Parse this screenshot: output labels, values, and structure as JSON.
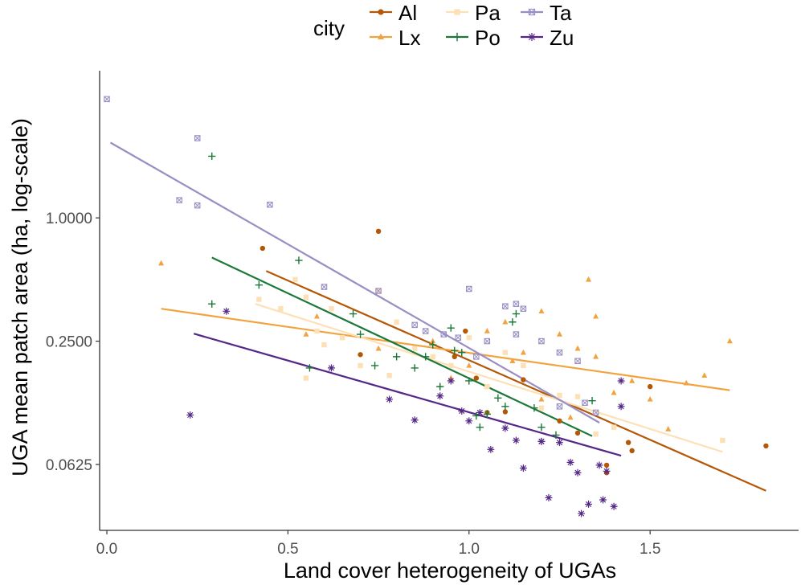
{
  "chart_data": {
    "type": "scatter",
    "xlabel": "Land cover heterogeneity of UGAs",
    "ylabel": "UGA mean patch area (ha, log-scale)",
    "x_ticks": [
      "0.0",
      "0.5",
      "1.0",
      "1.5"
    ],
    "x_tick_values": [
      0,
      0.5,
      1.0,
      1.5
    ],
    "y_ticks": [
      "1.0000",
      "0.2500",
      "0.0625"
    ],
    "y_tick_values": [
      1.0,
      0.25,
      0.0625
    ],
    "xlim": [
      -0.02,
      1.91
    ],
    "ylim": [
      0.0298,
      5.23
    ],
    "y_scale": "log",
    "grid": false,
    "legend": {
      "title": "city",
      "position": "top",
      "entries": [
        {
          "key": "Al",
          "label": "Al",
          "color": "#b35806",
          "shape": "circle"
        },
        {
          "key": "Lx",
          "label": "Lx",
          "color": "#f1a340",
          "shape": "triangle"
        },
        {
          "key": "Pa",
          "label": "Pa",
          "color": "#fee0b6",
          "shape": "square"
        },
        {
          "key": "Po",
          "label": "Po",
          "color": "#1b7837",
          "shape": "plus"
        },
        {
          "key": "Ta",
          "label": "Ta",
          "color": "#998ec3",
          "shape": "boxed-x"
        },
        {
          "key": "Zu",
          "label": "Zu",
          "color": "#542788",
          "shape": "asterisk"
        }
      ]
    },
    "series": [
      {
        "name": "Al",
        "color": "#b35806",
        "shape": "circle",
        "line": [
          [
            0.44,
            0.55
          ],
          [
            1.82,
            0.0465
          ]
        ],
        "x": [
          0.75,
          0.43,
          0.7,
          0.96,
          0.99,
          1.02,
          1.05,
          1.1,
          1.15,
          1.25,
          1.3,
          1.38,
          1.45,
          1.5,
          1.82,
          1.38,
          1.44
        ],
        "y": [
          0.86,
          0.71,
          0.215,
          0.21,
          0.28,
          0.165,
          0.112,
          0.113,
          0.162,
          0.102,
          0.089,
          0.057,
          0.073,
          0.15,
          0.077,
          0.062,
          0.08
        ]
      },
      {
        "name": "Lx",
        "color": "#f1a340",
        "shape": "triangle",
        "line": [
          [
            0.15,
            0.36
          ],
          [
            1.72,
            0.144
          ]
        ],
        "x": [
          0.15,
          0.55,
          0.58,
          0.75,
          0.9,
          1.0,
          1.05,
          1.1,
          1.15,
          1.2,
          1.25,
          1.3,
          1.33,
          1.35,
          1.4,
          1.45,
          1.5,
          1.55,
          1.6,
          1.65,
          1.72,
          1.28,
          1.35,
          0.95,
          1.12,
          1.2
        ],
        "y": [
          0.6,
          0.27,
          0.33,
          0.23,
          0.25,
          0.19,
          0.28,
          0.31,
          0.22,
          0.13,
          0.27,
          0.23,
          0.5,
          0.33,
          0.14,
          0.16,
          0.13,
          0.093,
          0.156,
          0.17,
          0.25,
          0.106,
          0.21,
          0.165,
          0.2,
          0.35
        ]
      },
      {
        "name": "Pa",
        "color": "#fee0b6",
        "shape": "square",
        "line": [
          [
            0.41,
            0.38
          ],
          [
            1.7,
            0.072
          ]
        ],
        "x": [
          0.42,
          0.48,
          0.52,
          0.55,
          0.58,
          0.6,
          0.65,
          0.7,
          0.75,
          0.8,
          0.85,
          0.9,
          0.95,
          1.0,
          1.05,
          1.1,
          1.15,
          1.2,
          1.25,
          1.3,
          1.35,
          1.4,
          1.7,
          0.55,
          0.78,
          0.62
        ],
        "y": [
          0.4,
          0.36,
          0.5,
          0.41,
          0.28,
          0.24,
          0.26,
          0.19,
          0.44,
          0.31,
          0.23,
          0.21,
          0.19,
          0.26,
          0.15,
          0.22,
          0.19,
          0.118,
          0.136,
          0.134,
          0.088,
          0.095,
          0.082,
          0.165,
          0.17,
          0.36
        ]
      },
      {
        "name": "Po",
        "color": "#1b7837",
        "shape": "plus",
        "line": [
          [
            0.29,
            0.64
          ],
          [
            1.34,
            0.086
          ]
        ],
        "x": [
          0.29,
          0.29,
          0.42,
          0.53,
          0.56,
          0.68,
          0.7,
          0.74,
          0.8,
          0.85,
          0.88,
          0.9,
          0.92,
          0.95,
          0.98,
          1.0,
          1.03,
          1.05,
          1.08,
          1.1,
          1.12,
          1.13,
          1.18,
          1.2,
          1.24,
          1.34,
          0.96,
          1.02
        ],
        "y": [
          2.0,
          0.38,
          0.47,
          0.62,
          0.185,
          0.34,
          0.27,
          0.19,
          0.21,
          0.185,
          0.21,
          0.24,
          0.15,
          0.29,
          0.22,
          0.16,
          0.095,
          0.11,
          0.132,
          0.12,
          0.31,
          0.34,
          0.118,
          0.095,
          0.087,
          0.128,
          0.225,
          0.108
        ]
      },
      {
        "name": "Ta",
        "color": "#998ec3",
        "shape": "boxed-x",
        "line": [
          [
            0.01,
            2.33
          ],
          [
            1.36,
            0.1
          ]
        ],
        "x": [
          0.0,
          0.25,
          0.2,
          0.25,
          0.45,
          0.6,
          0.75,
          0.85,
          0.88,
          0.93,
          0.97,
          1.0,
          1.02,
          1.05,
          1.1,
          1.13,
          1.15,
          1.2,
          1.25,
          1.3,
          1.35,
          1.13,
          1.32,
          1.25
        ],
        "y": [
          3.8,
          2.45,
          1.22,
          1.15,
          1.16,
          0.46,
          0.44,
          0.3,
          0.28,
          0.27,
          0.26,
          0.45,
          0.21,
          0.25,
          0.37,
          0.38,
          0.36,
          0.25,
          0.22,
          0.2,
          0.112,
          0.27,
          0.125,
          0.12
        ]
      },
      {
        "name": "Zu",
        "color": "#542788",
        "shape": "asterisk",
        "line": [
          [
            0.24,
            0.272
          ],
          [
            1.42,
            0.069
          ]
        ],
        "x": [
          0.23,
          0.33,
          0.62,
          0.78,
          0.85,
          0.92,
          0.95,
          1.0,
          1.03,
          1.06,
          1.1,
          1.13,
          1.15,
          1.2,
          1.22,
          1.25,
          1.28,
          1.3,
          1.31,
          1.33,
          1.36,
          1.37,
          1.38,
          1.4,
          1.42,
          1.42,
          1.2,
          0.98
        ],
        "y": [
          0.109,
          0.35,
          0.185,
          0.13,
          0.103,
          0.135,
          0.16,
          0.102,
          0.112,
          0.074,
          0.094,
          0.082,
          0.06,
          0.081,
          0.043,
          0.08,
          0.064,
          0.057,
          0.036,
          0.04,
          0.062,
          0.042,
          0.058,
          0.039,
          0.12,
          0.16,
          0.081,
          0.114
        ]
      }
    ]
  }
}
